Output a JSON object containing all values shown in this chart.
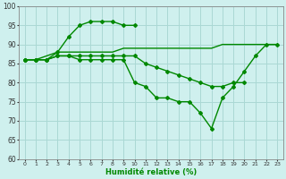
{
  "xlabel": "Humidité relative (%)",
  "xlim": [
    -0.5,
    23.5
  ],
  "ylim": [
    60,
    100
  ],
  "bg_color": "#cff0ee",
  "grid_color": "#aad8d4",
  "line_color": "#008800",
  "line1_x": [
    0,
    1,
    2,
    3,
    4,
    5,
    6,
    7,
    8,
    9,
    10
  ],
  "line1_y": [
    86,
    86,
    86,
    88,
    92,
    95,
    96,
    96,
    96,
    95,
    95
  ],
  "line2_x": [
    0,
    1,
    2,
    3,
    4,
    5,
    6,
    7,
    8,
    9,
    10,
    11,
    12,
    13,
    14,
    15,
    16,
    17,
    18,
    19,
    20,
    21,
    22,
    23
  ],
  "line2_y": [
    86,
    86,
    87,
    88,
    88,
    88,
    88,
    88,
    88,
    89,
    89,
    89,
    89,
    89,
    89,
    89,
    89,
    89,
    90,
    90,
    90,
    90,
    90,
    90
  ],
  "line3_x": [
    0,
    1,
    2,
    3,
    4,
    5,
    6,
    7,
    8,
    9,
    10,
    11,
    12,
    13,
    14,
    15,
    16,
    17,
    18,
    19,
    20
  ],
  "line3_y": [
    86,
    86,
    86,
    87,
    87,
    87,
    87,
    87,
    87,
    87,
    87,
    85,
    84,
    83,
    82,
    81,
    80,
    79,
    79,
    80,
    80
  ],
  "line4_x": [
    0,
    1,
    2,
    3,
    4,
    5,
    6,
    7,
    8,
    9,
    10,
    11,
    12,
    13,
    14,
    15,
    16,
    17,
    18,
    19,
    20,
    21,
    22,
    23
  ],
  "line4_y": [
    86,
    86,
    86,
    87,
    87,
    86,
    86,
    86,
    86,
    86,
    80,
    79,
    76,
    76,
    75,
    75,
    72,
    68,
    76,
    79,
    83,
    87,
    90,
    90
  ],
  "yticks": [
    60,
    65,
    70,
    75,
    80,
    85,
    90,
    95,
    100
  ],
  "xticks": [
    0,
    1,
    2,
    3,
    4,
    5,
    6,
    7,
    8,
    9,
    10,
    11,
    12,
    13,
    14,
    15,
    16,
    17,
    18,
    19,
    20,
    21,
    22,
    23
  ]
}
